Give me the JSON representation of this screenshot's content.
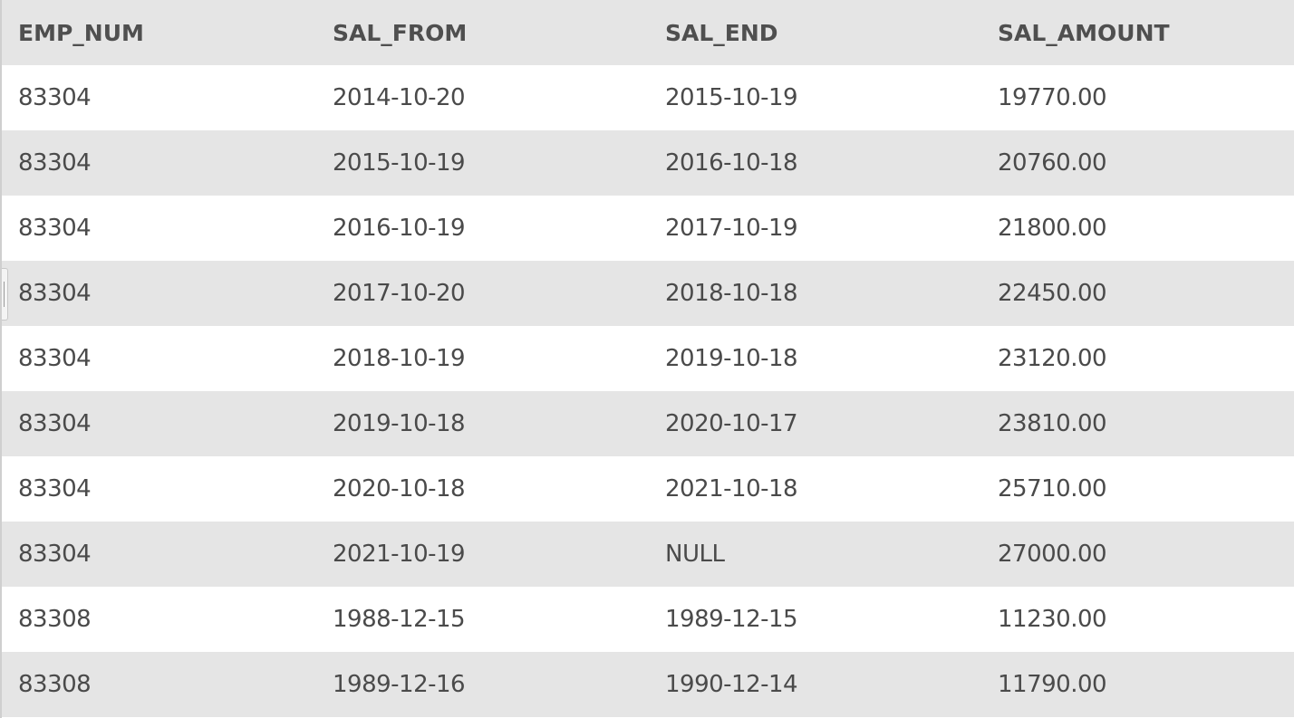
{
  "table": {
    "columns": [
      "EMP_NUM",
      "SAL_FROM",
      "SAL_END",
      "SAL_AMOUNT"
    ],
    "rows": [
      [
        "83304",
        "2014-10-20",
        "2015-10-19",
        "19770.00"
      ],
      [
        "83304",
        "2015-10-19",
        "2016-10-18",
        "20760.00"
      ],
      [
        "83304",
        "2016-10-19",
        "2017-10-19",
        "21800.00"
      ],
      [
        "83304",
        "2017-10-20",
        "2018-10-18",
        "22450.00"
      ],
      [
        "83304",
        "2018-10-19",
        "2019-10-18",
        "23120.00"
      ],
      [
        "83304",
        "2019-10-18",
        "2020-10-17",
        "23810.00"
      ],
      [
        "83304",
        "2020-10-18",
        "2021-10-18",
        "25710.00"
      ],
      [
        "83304",
        "2021-10-19",
        "NULL",
        "27000.00"
      ],
      [
        "83308",
        "1988-12-15",
        "1989-12-15",
        "11230.00"
      ],
      [
        "83308",
        "1989-12-16",
        "1990-12-14",
        "11790.00"
      ]
    ]
  }
}
